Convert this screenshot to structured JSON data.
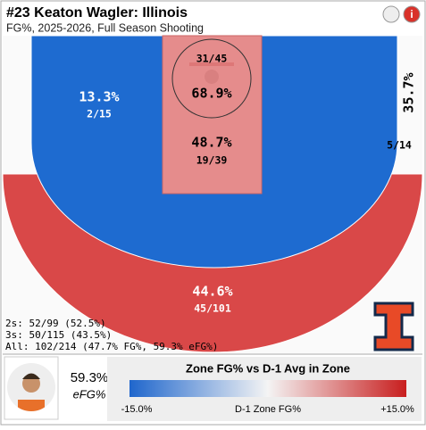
{
  "header": {
    "title": "#23 Keaton Wagler: Illinois",
    "subtitle": "FG%, 2025-2026, Full Season Shooting"
  },
  "zones": {
    "restricted": {
      "pct": "68.9%",
      "made": "31/45"
    },
    "paint": {
      "pct": "48.7%",
      "made": "19/39"
    },
    "midrange": {
      "pct": "13.3%",
      "made": "2/15"
    },
    "right_corner_three": {
      "pct": "35.7%",
      "made": "5/14"
    },
    "above_break_three": {
      "pct": "44.6%",
      "made": "45/101"
    }
  },
  "summary": [
    "2s: 52/99 (52.5%)",
    "3s: 50/115 (43.5%)",
    "All: 102/214 (47.7% FG%, 59.3% eFG%)"
  ],
  "player": {
    "efg": "59.3%",
    "efg_label": "eFG%"
  },
  "legend": {
    "title": "Zone FG% vs D-1 Avg in Zone",
    "min": "-15.0%",
    "axis_label": "D-1 Zone FG%",
    "max": "+15.0%"
  }
}
